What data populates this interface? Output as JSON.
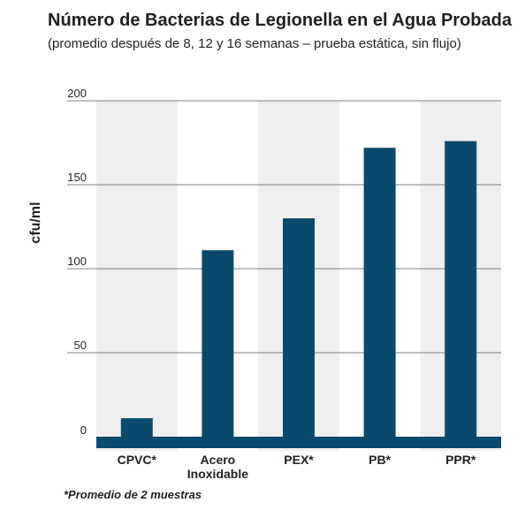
{
  "chart_data": {
    "type": "bar",
    "title": "Número de Bacterias de Legionella en el Agua Probada",
    "subtitle": "(promedio después de 8, 12 y 16 semanas – prueba estática, sin flujo)",
    "ylabel": "cfu/ml",
    "xlabel": "",
    "categories": [
      [
        "CPVC*"
      ],
      [
        "Acero",
        "Inoxidable"
      ],
      [
        "PEX*"
      ],
      [
        "PB*"
      ],
      [
        "PPR*"
      ]
    ],
    "values": [
      11,
      111,
      130,
      172,
      176
    ],
    "ylim": [
      0,
      200
    ],
    "yticks": [
      0,
      50,
      100,
      150,
      200
    ],
    "grid": true,
    "bar_color": "#094b6f",
    "band_color": "#efefef",
    "footnote": "*Promedio de 2 muestras"
  }
}
